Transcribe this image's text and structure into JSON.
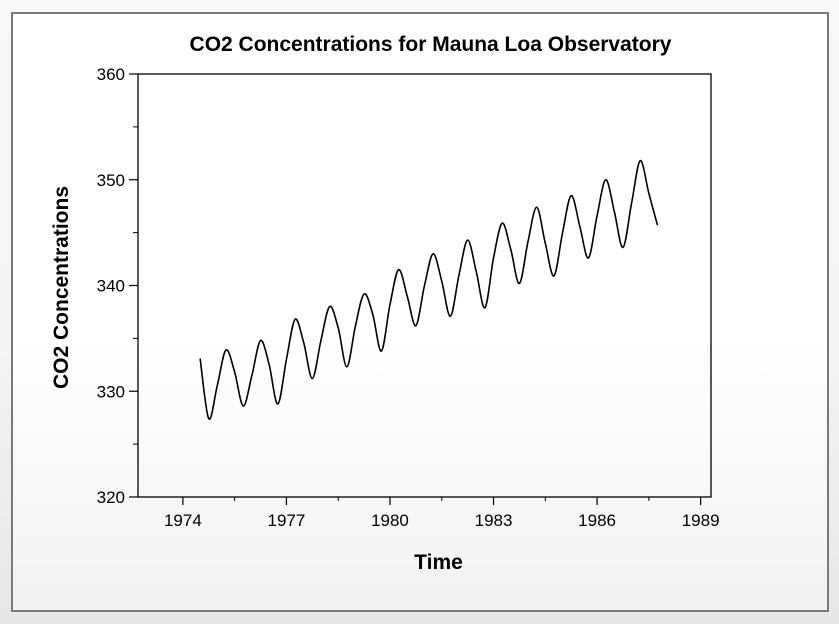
{
  "chart_data": {
    "type": "line",
    "title": "CO2 Concentrations for Mauna Loa Observatory",
    "xlabel": "Time",
    "ylabel": "CO2 Concentrations",
    "xlim": [
      1972.7,
      1989.3
    ],
    "ylim": [
      320,
      360
    ],
    "xticks": [
      1974,
      1977,
      1980,
      1983,
      1986,
      1989
    ],
    "yticks": [
      320,
      330,
      340,
      350,
      360
    ],
    "grid": false,
    "legend": "none",
    "colors": {
      "line": "#000000",
      "axis": "#000000",
      "frame": "#7a7a7a"
    },
    "series": [
      {
        "x": [
          1974.5,
          1974.75,
          1975.0,
          1975.25,
          1975.5,
          1975.75,
          1976.0,
          1976.25,
          1976.5,
          1976.75,
          1977.0,
          1977.25,
          1977.5,
          1977.75,
          1978.0,
          1978.25,
          1978.5,
          1978.75,
          1979.0,
          1979.25,
          1979.5,
          1979.75,
          1980.0,
          1980.25,
          1980.5,
          1980.75,
          1981.0,
          1981.25,
          1981.5,
          1981.75,
          1982.0,
          1982.25,
          1982.5,
          1982.75,
          1983.0,
          1983.25,
          1983.5,
          1983.75,
          1984.0,
          1984.25,
          1984.5,
          1984.75,
          1985.0,
          1985.25,
          1985.5,
          1985.75,
          1986.0,
          1986.25,
          1986.5,
          1986.75,
          1987.0,
          1987.25,
          1987.5,
          1987.75
        ],
        "values": [
          333.1,
          327.4,
          330.6,
          333.9,
          331.8,
          328.6,
          331.5,
          334.8,
          332.5,
          328.8,
          333.0,
          336.8,
          334.6,
          331.2,
          334.8,
          338.0,
          336.0,
          332.3,
          336.2,
          339.2,
          337.3,
          333.8,
          338.2,
          341.5,
          339.0,
          336.2,
          340.0,
          343.0,
          340.4,
          337.1,
          341.0,
          344.3,
          341.3,
          337.9,
          342.6,
          345.9,
          343.4,
          340.2,
          344.2,
          347.4,
          344.0,
          340.9,
          345.0,
          348.5,
          345.6,
          342.6,
          346.6,
          350.0,
          347.0,
          343.6,
          347.8,
          351.8,
          348.7,
          345.7
        ]
      }
    ]
  }
}
